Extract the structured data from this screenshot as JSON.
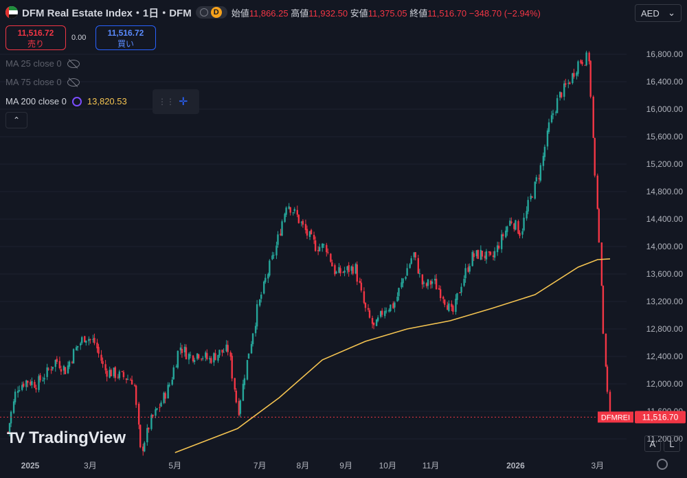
{
  "header": {
    "title": "DFM Real Estate Index・1日・DFM",
    "interval_badge": "D",
    "open_label": "始値",
    "open": "11,866.25",
    "high_label": "高値",
    "high": "11,932.50",
    "low_label": "安値",
    "low": "11,375.05",
    "close_label": "終値",
    "close": "11,516.70",
    "change": "−348.70 (−2.94%)"
  },
  "trade": {
    "sell_price": "11,516.72",
    "sell_label": "売り",
    "spread": "0.00",
    "buy_price": "11,516.72",
    "buy_label": "買い"
  },
  "indicators": [
    {
      "label": "MA 25 close 0",
      "value": ""
    },
    {
      "label": "MA 75 close 0",
      "value": ""
    },
    {
      "label": "MA 200 close 0",
      "value": "13,820.53"
    }
  ],
  "currency": "AED",
  "branding": "TradingView",
  "buttons": {
    "auto": "A",
    "log": "L"
  },
  "last_price_tag": {
    "symbol": "DFMREI",
    "price": "11,516.70"
  },
  "colors": {
    "up": "#26a69a",
    "down": "#f23645",
    "ma200": "#f5c451",
    "background": "#131722"
  },
  "chart_data": {
    "type": "candlestick",
    "y_range": [
      11000,
      16950
    ],
    "y_ticks": [
      "16,800.00",
      "16,400.00",
      "16,000.00",
      "15,600.00",
      "15,200.00",
      "14,800.00",
      "14,400.00",
      "14,000.00",
      "13,600.00",
      "13,200.00",
      "12,800.00",
      "12,400.00",
      "12,000.00",
      "11,600.00",
      "11,200.00"
    ],
    "x_ticks": [
      "2025",
      "3月",
      "5月",
      "7月",
      "8月",
      "9月",
      "10月",
      "11月",
      "2026",
      "3月"
    ],
    "series_close": [
      {
        "date": "2025-01-01",
        "close": 11300
      },
      {
        "date": "2025-01-08",
        "close": 11950
      },
      {
        "date": "2025-01-15",
        "close": 12050
      },
      {
        "date": "2025-01-22",
        "close": 12000
      },
      {
        "date": "2025-01-29",
        "close": 12150
      },
      {
        "date": "2025-02-05",
        "close": 12350
      },
      {
        "date": "2025-02-12",
        "close": 12200
      },
      {
        "date": "2025-02-19",
        "close": 12500
      },
      {
        "date": "2025-02-26",
        "close": 12700
      },
      {
        "date": "2025-03-05",
        "close": 12600
      },
      {
        "date": "2025-03-12",
        "close": 12200
      },
      {
        "date": "2025-03-19",
        "close": 12150
      },
      {
        "date": "2025-03-26",
        "close": 12100
      },
      {
        "date": "2025-04-02",
        "close": 12050
      },
      {
        "date": "2025-04-07",
        "close": 11000
      },
      {
        "date": "2025-04-14",
        "close": 11450
      },
      {
        "date": "2025-04-21",
        "close": 11700
      },
      {
        "date": "2025-04-28",
        "close": 12000
      },
      {
        "date": "2025-05-05",
        "close": 12550
      },
      {
        "date": "2025-05-12",
        "close": 12400
      },
      {
        "date": "2025-05-19",
        "close": 12450
      },
      {
        "date": "2025-05-26",
        "close": 12350
      },
      {
        "date": "2025-06-02",
        "close": 12450
      },
      {
        "date": "2025-06-09",
        "close": 12500
      },
      {
        "date": "2025-06-16",
        "close": 11600
      },
      {
        "date": "2025-06-23",
        "close": 12400
      },
      {
        "date": "2025-06-30",
        "close": 13100
      },
      {
        "date": "2025-07-07",
        "close": 13600
      },
      {
        "date": "2025-07-14",
        "close": 14050
      },
      {
        "date": "2025-07-21",
        "close": 14650
      },
      {
        "date": "2025-07-28",
        "close": 14450
      },
      {
        "date": "2025-08-04",
        "close": 14200
      },
      {
        "date": "2025-08-11",
        "close": 14000
      },
      {
        "date": "2025-08-18",
        "close": 14000
      },
      {
        "date": "2025-08-25",
        "close": 13600
      },
      {
        "date": "2025-09-01",
        "close": 13650
      },
      {
        "date": "2025-09-08",
        "close": 13700
      },
      {
        "date": "2025-09-15",
        "close": 13100
      },
      {
        "date": "2025-09-22",
        "close": 12800
      },
      {
        "date": "2025-09-29",
        "close": 13100
      },
      {
        "date": "2025-10-06",
        "close": 13150
      },
      {
        "date": "2025-10-13",
        "close": 13550
      },
      {
        "date": "2025-10-20",
        "close": 13900
      },
      {
        "date": "2025-10-27",
        "close": 13400
      },
      {
        "date": "2025-11-03",
        "close": 13500
      },
      {
        "date": "2025-11-10",
        "close": 13300
      },
      {
        "date": "2025-11-17",
        "close": 13000
      },
      {
        "date": "2025-11-24",
        "close": 13500
      },
      {
        "date": "2025-12-01",
        "close": 13850
      },
      {
        "date": "2025-12-08",
        "close": 13900
      },
      {
        "date": "2025-12-15",
        "close": 13800
      },
      {
        "date": "2025-12-22",
        "close": 14100
      },
      {
        "date": "2025-12-29",
        "close": 14400
      },
      {
        "date": "2026-01-05",
        "close": 14200
      },
      {
        "date": "2026-01-12",
        "close": 14700
      },
      {
        "date": "2026-01-19",
        "close": 15100
      },
      {
        "date": "2026-01-26",
        "close": 15800
      },
      {
        "date": "2026-02-02",
        "close": 16200
      },
      {
        "date": "2026-02-09",
        "close": 16400
      },
      {
        "date": "2026-02-16",
        "close": 16700
      },
      {
        "date": "2026-02-23",
        "close": 16750
      },
      {
        "date": "2026-02-27",
        "close": 15200
      },
      {
        "date": "2026-03-03",
        "close": 13900
      },
      {
        "date": "2026-03-06",
        "close": 12500
      },
      {
        "date": "2026-03-10",
        "close": 11516.7
      }
    ],
    "ma200": [
      {
        "date": "2025-05-01",
        "value": 11000
      },
      {
        "date": "2025-06-15",
        "value": 11350
      },
      {
        "date": "2025-07-15",
        "value": 11800
      },
      {
        "date": "2025-08-15",
        "value": 12350
      },
      {
        "date": "2025-09-15",
        "value": 12620
      },
      {
        "date": "2025-10-15",
        "value": 12800
      },
      {
        "date": "2025-11-15",
        "value": 12920
      },
      {
        "date": "2025-12-15",
        "value": 13100
      },
      {
        "date": "2026-01-15",
        "value": 13300
      },
      {
        "date": "2026-02-15",
        "value": 13700
      },
      {
        "date": "2026-03-01",
        "value": 13810
      },
      {
        "date": "2026-03-10",
        "value": 13820.53
      }
    ],
    "last_price": 11516.7
  }
}
